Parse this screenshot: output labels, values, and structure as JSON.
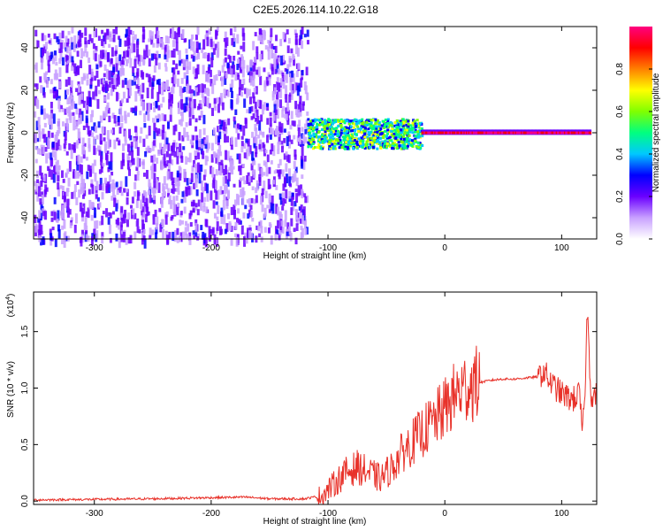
{
  "title": "C2E5.2026.114.10.22.G18",
  "chart_data": [
    {
      "type": "heatmap",
      "xlabel": "Height of straight line (km)",
      "ylabel": "Frequency (Hz)",
      "xlim": [
        -352,
        130
      ],
      "ylim": [
        -50,
        50
      ],
      "x_ticks": [
        -300,
        -200,
        -100,
        0,
        100
      ],
      "y_ticks": [
        -40,
        -20,
        0,
        20,
        40
      ],
      "colorbar": {
        "label": "Normalized spectral amplitude",
        "range": [
          0,
          1
        ],
        "ticks": [
          "0.0",
          "0.2",
          "0.4",
          "0.6",
          "0.8"
        ],
        "colors": [
          "#ffffff",
          "#c8a0ff",
          "#6a00ff",
          "#0000ff",
          "#00c8ff",
          "#00ff80",
          "#80ff00",
          "#ffff00",
          "#ff8000",
          "#ff0000",
          "#ff0080"
        ]
      },
      "regions": [
        {
          "x_range": [
            -352,
            -118
          ],
          "freq_range": [
            -50,
            50
          ],
          "amplitude": "low, scattered (0.0-0.25)"
        },
        {
          "x_range": [
            -118,
            -20
          ],
          "freq_center": 0,
          "freq_halfwidth": 8,
          "amplitude": "0.3-0.6"
        },
        {
          "x_range": [
            -20,
            125
          ],
          "freq_center": 0,
          "freq_halfwidth": 2,
          "amplitude": "0.8-1.0"
        }
      ]
    },
    {
      "type": "line",
      "xlabel": "Height of straight line (km)",
      "ylabel": "SNR (10 * v/v)",
      "y_multiplier": "(x10",
      "y_multiplier_exp": "4",
      "y_multiplier_close": ")",
      "xlim": [
        -352,
        130
      ],
      "ylim": [
        -0.03,
        1.85
      ],
      "x_ticks": [
        -300,
        -200,
        -100,
        0,
        100
      ],
      "y_ticks": [
        "0.0",
        "0.5",
        "1.0",
        "1.5"
      ],
      "y_tick_values": [
        0,
        0.5,
        1.0,
        1.5
      ],
      "color": "#e8322a",
      "series": [
        {
          "x": [
            -352,
            -300,
            -250,
            -200,
            -170,
            -150,
            -120,
            -105,
            -95,
            -85,
            -75,
            -65,
            -55,
            -45,
            -35,
            -25,
            -15,
            -8,
            0,
            10,
            20,
            30,
            40,
            50,
            60,
            70,
            80,
            85,
            90,
            95,
            100,
            105,
            110,
            115,
            118,
            120,
            122,
            125,
            130
          ],
          "y": [
            0.01,
            0.015,
            0.02,
            0.03,
            0.035,
            0.02,
            0.02,
            0.05,
            0.15,
            0.25,
            0.3,
            0.25,
            0.2,
            0.3,
            0.45,
            0.55,
            0.65,
            0.72,
            0.82,
            0.95,
            1.02,
            1.05,
            1.07,
            1.08,
            1.08,
            1.09,
            1.1,
            1.15,
            1.05,
            1.0,
            0.95,
            0.92,
            0.9,
            0.95,
            0.6,
            1.0,
            1.7,
            0.95,
            0.93
          ]
        }
      ]
    }
  ]
}
